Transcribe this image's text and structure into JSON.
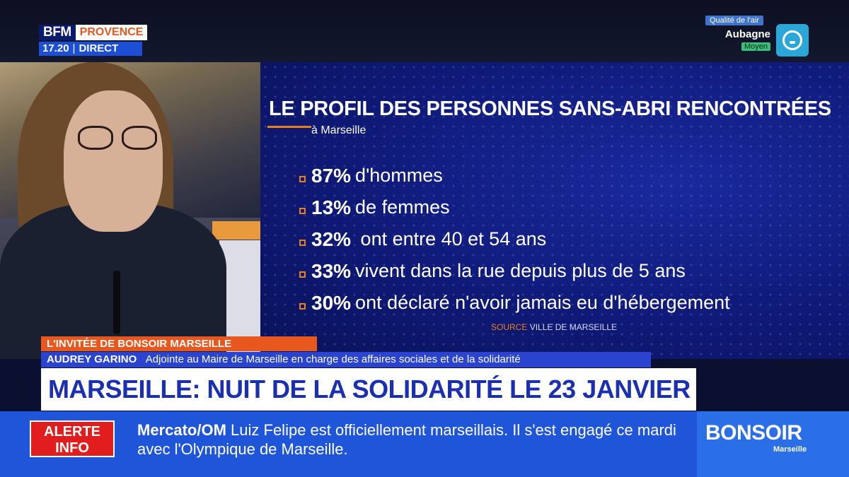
{
  "logo": {
    "brand": "BFM",
    "region": "PROVENCE",
    "time": "17.20",
    "separator": "|",
    "live": "DIRECT"
  },
  "air_quality": {
    "title": "Qualité de l'air",
    "city": "Aubagne",
    "level": "Moyen",
    "icon": "air-quality-icon"
  },
  "graphic": {
    "title": "LE PROFIL DES PERSONNES SANS-ABRI RENCONTRÉES",
    "subtitle": "à Marseille",
    "stats": [
      {
        "pct": "87%",
        "text": "d'hommes"
      },
      {
        "pct": "13%",
        "text": "de femmes"
      },
      {
        "pct": "32%",
        "text": " ont entre 40 et 54 ans"
      },
      {
        "pct": "33%",
        "text": "vivent dans la rue depuis plus de 5 ans"
      },
      {
        "pct": "30%",
        "text": "ont déclaré n'avoir jamais eu d'hébergement"
      }
    ],
    "source_label": "SOURCE",
    "source_value": "VILLE DE MARSEILLE"
  },
  "lower_third": {
    "label": "L'INVITÉE DE BONSOIR MARSEILLE",
    "name": "AUDREY GARINO",
    "role": "Adjointe au Maire de Marseille en charge des affaires sociales et de la solidarité",
    "headline": "MARSEILLE: NUIT DE LA SOLIDARITÉ LE 23 JANVIER"
  },
  "ticker": {
    "alert_line1": "ALERTE",
    "alert_line2": "INFO",
    "tag": "Mercato/OM",
    "text": " Luiz Felipe est officiellement marseillais. Il s'est engagé ce mardi avec l'Olympique de Marseille."
  },
  "show_brand": {
    "main": "BONSOIR",
    "sub": "Marseille"
  },
  "colors": {
    "accent": "#e8801e",
    "brand_blue": "#1f55d8",
    "alert_red": "#e11d1d",
    "headline_blue": "#1b2fb2"
  }
}
